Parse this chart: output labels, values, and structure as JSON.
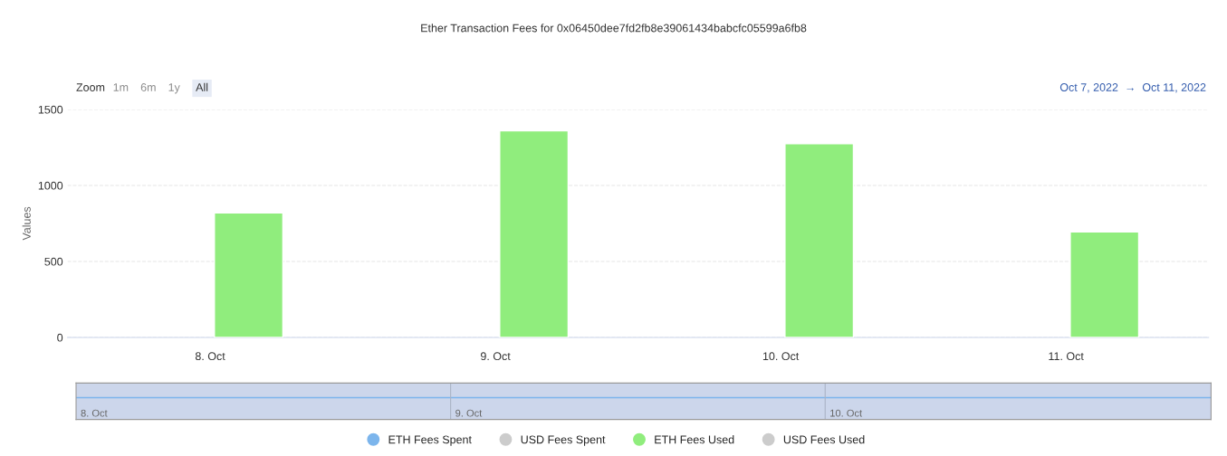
{
  "chart_data": {
    "type": "bar",
    "title": "Ether Transaction Fees for 0x06450dee7fd2fb8e39061434babcfc05599a6fb8",
    "ylabel": "Values",
    "categories": [
      "8. Oct",
      "9. Oct",
      "10. Oct",
      "11. Oct"
    ],
    "series": [
      {
        "name": "ETH Fees Spent",
        "color": "#7cb5ec",
        "values": [
          null,
          null,
          null,
          null
        ]
      },
      {
        "name": "USD Fees Spent",
        "color": "#cccccc",
        "values": [
          null,
          null,
          null,
          null
        ]
      },
      {
        "name": "ETH Fees Used",
        "color": "#90ed7d",
        "values": [
          820,
          1360,
          1275,
          695
        ]
      },
      {
        "name": "USD Fees Used",
        "color": "#cccccc",
        "values": [
          null,
          null,
          null,
          null
        ]
      }
    ],
    "ylim": [
      0,
      1500
    ],
    "yticks": [
      0,
      500,
      1000,
      1500
    ],
    "grid": "y",
    "legend": "bottom",
    "annotations": [
      "Zoom",
      "1m",
      "6m",
      "1y",
      "All",
      "Oct 7, 2022  →  Oct 11, 2022",
      "8. Oct",
      "9. Oct",
      "10. Oct"
    ]
  }
}
